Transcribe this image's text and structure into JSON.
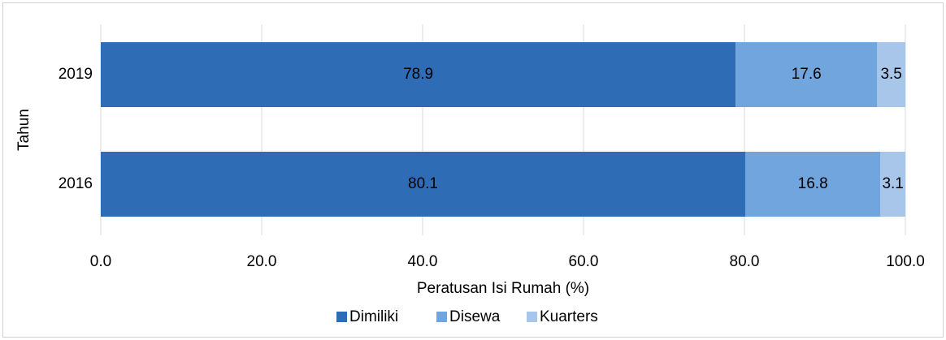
{
  "chart_data": {
    "type": "stacked-barh",
    "x_label": "Peratusan Isi Rumah (%)",
    "y_label": "Tahun",
    "categories": [
      "2019",
      "2016"
    ],
    "series": [
      {
        "name": "Dimiliki",
        "color": "#2e6db5",
        "values": [
          78.9,
          80.1
        ]
      },
      {
        "name": "Disewa",
        "color": "#71a5dd",
        "values": [
          17.6,
          16.8
        ]
      },
      {
        "name": "Kuarters",
        "color": "#a7c6ea",
        "values": [
          3.5,
          3.1
        ]
      }
    ],
    "xlim": [
      0,
      100
    ],
    "xticks": [
      {
        "value": 0,
        "label": "0.0"
      },
      {
        "value": 20,
        "label": "20.0"
      },
      {
        "value": 40,
        "label": "40.0"
      },
      {
        "value": 60,
        "label": "60.0"
      },
      {
        "value": 80,
        "label": "80.0"
      },
      {
        "value": 100,
        "label": "100.0"
      }
    ],
    "grid": true,
    "legend": "bottom"
  }
}
